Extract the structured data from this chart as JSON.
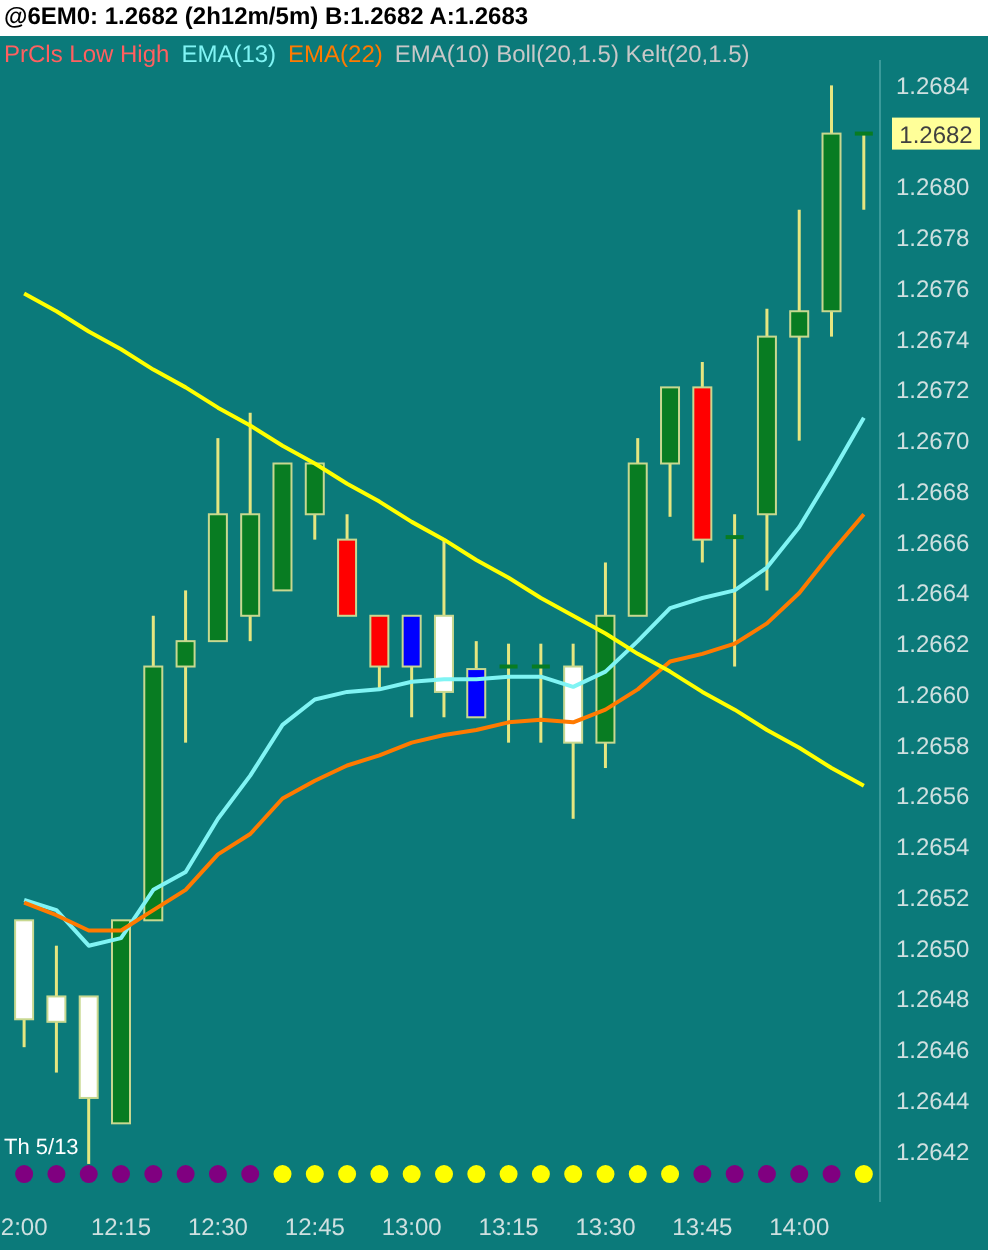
{
  "chart_data": {
    "type": "candlestick",
    "title": "@6EM0: 1.2682 (2h12m/5m)  B:1.2682 A:1.2683",
    "categories": [
      "2:00",
      null,
      null,
      "12:15",
      null,
      null,
      "12:30",
      null,
      null,
      "12:45",
      null,
      null,
      "13:00",
      null,
      null,
      "13:15",
      null,
      null,
      "13:30",
      null,
      null,
      "13:45",
      null,
      null,
      "14:00",
      null,
      null
    ],
    "ohlc": [
      [
        1.26511,
        1.26511,
        1.26461,
        1.26472
      ],
      [
        1.26481,
        1.26501,
        1.26451,
        1.26471
      ],
      [
        1.26481,
        1.26481,
        1.26415,
        1.26441
      ],
      [
        1.26431,
        1.26511,
        1.26431,
        1.26511
      ],
      [
        1.26511,
        1.26631,
        1.26511,
        1.26611
      ],
      [
        1.26611,
        1.26641,
        1.26581,
        1.26621
      ],
      [
        1.26621,
        1.26701,
        1.26621,
        1.26671
      ],
      [
        1.26631,
        1.26711,
        1.26621,
        1.26671
      ],
      [
        1.26641,
        1.26691,
        1.26641,
        1.26691
      ],
      [
        1.26671,
        1.26691,
        1.26661,
        1.26691
      ],
      [
        1.26661,
        1.26671,
        1.26631,
        1.26631
      ],
      [
        1.26631,
        1.26631,
        1.26602,
        1.26611
      ],
      [
        1.26631,
        1.26631,
        1.26591,
        1.26611
      ],
      [
        1.26631,
        1.26661,
        1.26591,
        1.26601
      ],
      [
        1.2661,
        1.26621,
        1.26591,
        1.26591
      ],
      [
        1.26611,
        1.2662,
        1.26581,
        1.26611
      ],
      [
        1.26611,
        1.2662,
        1.26581,
        1.26611
      ],
      [
        1.26611,
        1.2662,
        1.26551,
        1.26581
      ],
      [
        1.26581,
        1.26652,
        1.26571,
        1.26631
      ],
      [
        1.26631,
        1.26701,
        1.26631,
        1.26691
      ],
      [
        1.26691,
        1.26721,
        1.2667,
        1.26721
      ],
      [
        1.26721,
        1.26731,
        1.26652,
        1.26661
      ],
      [
        1.26662,
        1.26671,
        1.26611,
        1.26662
      ],
      [
        1.26671,
        1.26752,
        1.26641,
        1.26741
      ],
      [
        1.26741,
        1.26791,
        1.267,
        1.26751
      ],
      [
        1.26751,
        1.2684,
        1.26741,
        1.26821
      ],
      [
        1.26821,
        1.26821,
        1.26791,
        1.26821
      ]
    ],
    "colors": [
      "#ffffff",
      "#ffffff",
      "#ffffff",
      "#087c22",
      "#087c22",
      "#087c22",
      "#087c22",
      "#087c22",
      "#087c22",
      "#087c22",
      "#ff0000",
      "#ff0000",
      "#0000ff",
      "#ffffff",
      "#0000ff",
      "#087c22",
      "#087c22",
      "#ffffff",
      "#087c22",
      "#087c22",
      "#087c22",
      "#ff0000",
      "#087c22",
      "#087c22",
      "#087c22",
      "#087c22",
      "#087c22"
    ],
    "series": [
      {
        "type": "line",
        "name": "EMA(13)",
        "color": "#80f4f4",
        "values": [
          1.26519,
          1.26515,
          1.26501,
          1.26504,
          1.26523,
          1.2653,
          1.26551,
          1.26568,
          1.26588,
          1.26598,
          1.26601,
          1.26602,
          1.26605,
          1.26606,
          1.26606,
          1.26607,
          1.26607,
          1.26603,
          1.26609,
          1.26621,
          1.26634,
          1.26638,
          1.26641,
          1.2665,
          1.26666,
          1.26687,
          1.26709
        ]
      },
      {
        "type": "line",
        "name": "EMA(22)",
        "color": "#ff7a00",
        "values": [
          1.26518,
          1.26513,
          1.26507,
          1.26507,
          1.26515,
          1.26523,
          1.26537,
          1.26545,
          1.26559,
          1.26566,
          1.26572,
          1.26576,
          1.26581,
          1.26584,
          1.26586,
          1.26589,
          1.2659,
          1.26589,
          1.26594,
          1.26602,
          1.26613,
          1.26616,
          1.2662,
          1.26628,
          1.2664,
          1.26656,
          1.26671
        ]
      },
      {
        "type": "line",
        "color": "#ffff00",
        "values": [
          1.26758,
          1.26751,
          1.26743,
          1.26736,
          1.26728,
          1.26721,
          1.26713,
          1.26706,
          1.26698,
          1.26691,
          1.26683,
          1.26676,
          1.26668,
          1.26661,
          1.26653,
          1.26646,
          1.26638,
          1.26631,
          1.26624,
          1.26616,
          1.26609,
          1.26601,
          1.26594,
          1.26586,
          1.26579,
          1.26571,
          1.26564
        ]
      },
      {
        "type": "scatter",
        "values": [
          1.26411,
          1.26411,
          1.26411,
          1.26411,
          1.26411,
          1.26411,
          1.26411,
          1.26411,
          1.26411,
          1.26411,
          1.26411,
          1.26411,
          1.26411,
          1.26411,
          1.26411,
          1.26411,
          1.26411,
          1.26411,
          1.26411,
          1.26411,
          1.26411,
          1.26411,
          1.26411,
          1.26411,
          1.26411,
          1.26411,
          1.26411
        ],
        "colors": [
          "#800080",
          "#800080",
          "#800080",
          "#800080",
          "#800080",
          "#800080",
          "#800080",
          "#800080",
          "#ffff00",
          "#ffff00",
          "#ffff00",
          "#ffff00",
          "#ffff00",
          "#ffff00",
          "#ffff00",
          "#ffff00",
          "#ffff00",
          "#ffff00",
          "#ffff00",
          "#ffff00",
          "#ffff00",
          "#800080",
          "#800080",
          "#800080",
          "#800080",
          "#800080",
          "#ffff00"
        ]
      }
    ],
    "ylim": [
      1.264,
      1.2685
    ],
    "yticks": [
      1.2642,
      1.2644,
      1.2646,
      1.2648,
      {
        "value": 1.265,
        "label": "1.2650"
      },
      1.2652,
      1.2654,
      1.2656,
      1.2658,
      {
        "value": 1.266,
        "label": "1.2660"
      },
      1.2662,
      1.2664,
      1.2666,
      1.2668,
      {
        "value": 1.267,
        "label": "1.2670"
      },
      1.2672,
      1.2674,
      1.2676,
      1.2678,
      {
        "value": 1.268,
        "label": "1.2680"
      },
      1.2684
    ],
    "line_style": "solid",
    "legend": "top left",
    "annotations": [
      "PrCls Low High",
      "EMA(10) Boll(20,1.5) Kelt(20,1.5)",
      "1.2682",
      "Th 5/13"
    ]
  }
}
